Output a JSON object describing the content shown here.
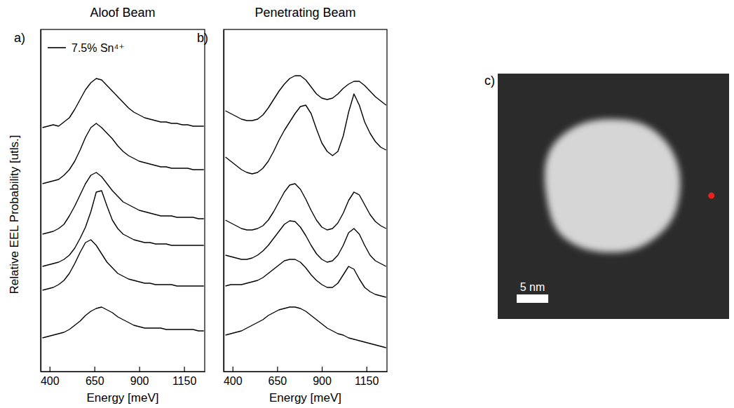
{
  "chart_data": [
    {
      "type": "line",
      "title": "Aloof Beam",
      "panel_label": "a)",
      "x_label": "Energy [meV]",
      "y_label": "Relative EEL Probability [utls.]",
      "x": [
        360,
        390,
        420,
        450,
        480,
        510,
        540,
        570,
        600,
        630,
        660,
        690,
        720,
        750,
        780,
        810,
        840,
        870,
        900,
        930,
        960,
        990,
        1020,
        1050,
        1080,
        1110,
        1140,
        1170,
        1200,
        1230,
        1260
      ],
      "series": [
        {
          "name": "7.5% Sn⁴⁺",
          "color": "#000000",
          "values": [
            348,
            350,
            352,
            350,
            356,
            362,
            374,
            388,
            402,
            412,
            418,
            416,
            408,
            400,
            392,
            384,
            376,
            370,
            366,
            362,
            360,
            358,
            356,
            356,
            354,
            354,
            352,
            352,
            350,
            350,
            350
          ]
        },
        {
          "color": "#000000",
          "values": [
            268,
            270,
            272,
            274,
            280,
            288,
            300,
            316,
            334,
            348,
            354,
            348,
            340,
            332,
            322,
            314,
            308,
            304,
            300,
            298,
            296,
            294,
            292,
            292,
            290,
            290,
            290,
            290,
            288,
            288,
            288
          ]
        },
        {
          "color": "#000000",
          "values": [
            196,
            198,
            200,
            204,
            210,
            222,
            236,
            252,
            268,
            280,
            284,
            278,
            268,
            258,
            250,
            242,
            238,
            234,
            230,
            228,
            226,
            224,
            222,
            222,
            222,
            220,
            220,
            220,
            220,
            218,
            218
          ]
        },
        {
          "color": "#000000",
          "values": [
            150,
            152,
            154,
            156,
            160,
            166,
            176,
            190,
            206,
            228,
            256,
            258,
            236,
            216,
            204,
            196,
            192,
            188,
            186,
            184,
            184,
            182,
            182,
            182,
            180,
            180,
            180,
            180,
            180,
            180,
            180
          ]
        },
        {
          "color": "#000000",
          "values": [
            116,
            118,
            120,
            124,
            130,
            140,
            154,
            170,
            184,
            188,
            180,
            168,
            156,
            148,
            140,
            136,
            132,
            130,
            128,
            126,
            126,
            124,
            124,
            124,
            124,
            122,
            122,
            122,
            122,
            122,
            122
          ]
        },
        {
          "color": "#000000",
          "values": [
            48,
            50,
            52,
            54,
            56,
            60,
            66,
            72,
            80,
            86,
            90,
            92,
            88,
            84,
            78,
            74,
            70,
            66,
            64,
            62,
            62,
            62,
            62,
            60,
            60,
            60,
            60,
            60,
            60,
            58,
            58
          ]
        }
      ],
      "xlim": [
        350,
        1265
      ],
      "xticks": [
        400,
        650,
        900,
        1150
      ],
      "ylim": [
        0,
        488
      ],
      "tick_labels": "x",
      "legend": "upper left"
    },
    {
      "type": "line",
      "title": "Penetrating Beam",
      "panel_label": "b)",
      "x_label": "Energy [meV]",
      "x": [
        360,
        390,
        420,
        450,
        480,
        510,
        540,
        570,
        600,
        630,
        660,
        690,
        720,
        750,
        780,
        810,
        840,
        870,
        900,
        930,
        960,
        990,
        1020,
        1050,
        1080,
        1110,
        1140,
        1170,
        1200,
        1230,
        1260
      ],
      "series": [
        {
          "color": "#000000",
          "values": [
            372,
            368,
            364,
            360,
            358,
            358,
            360,
            366,
            376,
            388,
            400,
            410,
            418,
            422,
            422,
            416,
            406,
            396,
            390,
            388,
            390,
            396,
            404,
            410,
            414,
            414,
            408,
            400,
            392,
            386,
            380
          ]
        },
        {
          "color": "#000000",
          "values": [
            306,
            300,
            294,
            288,
            284,
            282,
            284,
            290,
            300,
            314,
            330,
            344,
            356,
            368,
            378,
            380,
            368,
            346,
            326,
            314,
            308,
            314,
            336,
            370,
            396,
            380,
            356,
            340,
            328,
            320,
            316
          ]
        },
        {
          "color": "#000000",
          "values": [
            216,
            212,
            208,
            204,
            202,
            202,
            204,
            208,
            216,
            228,
            242,
            256,
            266,
            268,
            260,
            246,
            230,
            216,
            206,
            202,
            204,
            212,
            226,
            244,
            256,
            252,
            238,
            224,
            214,
            208,
            204
          ]
        },
        {
          "color": "#000000",
          "values": [
            166,
            164,
            162,
            160,
            160,
            162,
            166,
            172,
            180,
            190,
            200,
            210,
            215,
            214,
            206,
            194,
            180,
            168,
            160,
            156,
            158,
            166,
            180,
            198,
            204,
            196,
            180,
            166,
            158,
            154,
            150
          ]
        },
        {
          "color": "#000000",
          "values": [
            122,
            124,
            124,
            124,
            126,
            128,
            130,
            134,
            140,
            146,
            152,
            158,
            160,
            160,
            156,
            148,
            138,
            130,
            124,
            120,
            120,
            126,
            138,
            150,
            146,
            132,
            120,
            114,
            110,
            108,
            106
          ]
        },
        {
          "color": "#000000",
          "values": [
            52,
            54,
            56,
            58,
            62,
            66,
            70,
            74,
            80,
            84,
            88,
            90,
            92,
            92,
            90,
            86,
            80,
            74,
            68,
            62,
            58,
            54,
            52,
            48,
            46,
            44,
            42,
            40,
            38,
            36,
            34
          ]
        }
      ],
      "xlim": [
        350,
        1265
      ],
      "xticks": [
        400,
        650,
        900,
        1150
      ],
      "ylim": [
        0,
        488
      ],
      "tick_labels": "x"
    },
    {
      "type": "image",
      "panel_label": "c)",
      "xlim": [
        0,
        36.6
      ],
      "ylim": [
        0,
        38
      ],
      "x": [
        33.8
      ],
      "y": [
        18.9
      ],
      "color": "#e8231f",
      "scale_bar": {
        "value": 5,
        "label": "5 nm"
      },
      "tick_labels": false
    }
  ]
}
